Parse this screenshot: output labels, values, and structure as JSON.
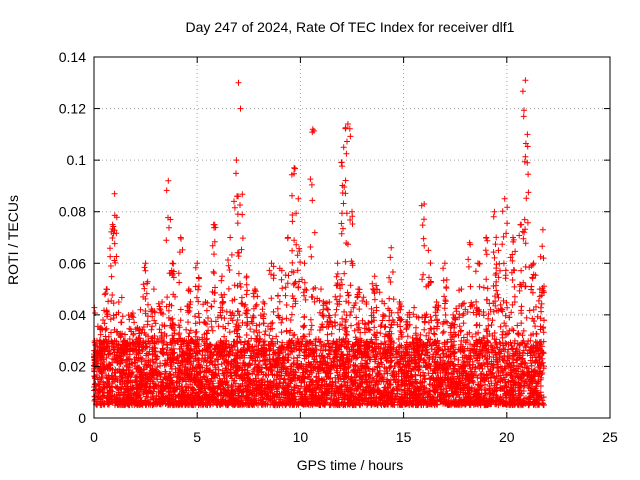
{
  "chart_data": {
    "type": "scatter",
    "title": "Day 247 of 2024, Rate Of TEC Index for receiver dlf1",
    "xlabel": "GPS time / hours",
    "ylabel": "ROTI / TECUs",
    "xlim": [
      0,
      25
    ],
    "ylim": [
      0,
      0.14
    ],
    "xticks": [
      "0",
      "5",
      "10",
      "15",
      "20",
      "25"
    ],
    "yticks": [
      "0",
      "0.02",
      "0.04",
      "0.06",
      "0.08",
      "0.1",
      "0.12",
      "0.14"
    ],
    "grid": true,
    "marker": "+",
    "color": "#ff0000",
    "x_range_of_data": [
      0,
      21.8
    ],
    "series": [
      {
        "name": "ROTI",
        "x": [
          0.05,
          0.3,
          0.6,
          0.9,
          1.0,
          1.2,
          1.5,
          1.8,
          2.1,
          2.5,
          2.9,
          3.3,
          3.6,
          3.8,
          4.2,
          4.6,
          5.0,
          5.4,
          5.8,
          6.2,
          6.6,
          6.9,
          7.0,
          7.1,
          7.4,
          7.8,
          8.2,
          8.6,
          9.0,
          9.4,
          9.7,
          9.9,
          10.2,
          10.6,
          11.0,
          11.4,
          11.8,
          12.1,
          12.3,
          12.5,
          12.8,
          13.2,
          13.6,
          14.0,
          14.4,
          14.8,
          15.2,
          15.6,
          16.0,
          16.2,
          16.6,
          17.0,
          17.4,
          17.8,
          18.2,
          18.6,
          19.0,
          19.4,
          19.6,
          19.9,
          20.3,
          20.7,
          20.9,
          21.0,
          21.3,
          21.6,
          21.75
        ],
        "y": [
          0.02,
          0.035,
          0.05,
          0.075,
          0.087,
          0.045,
          0.03,
          0.04,
          0.035,
          0.06,
          0.05,
          0.045,
          0.092,
          0.06,
          0.07,
          0.05,
          0.06,
          0.045,
          0.075,
          0.055,
          0.07,
          0.1,
          0.13,
          0.12,
          0.055,
          0.05,
          0.045,
          0.06,
          0.058,
          0.07,
          0.097,
          0.085,
          0.06,
          0.112,
          0.05,
          0.045,
          0.06,
          0.105,
          0.114,
          0.08,
          0.05,
          0.045,
          0.055,
          0.04,
          0.066,
          0.045,
          0.04,
          0.035,
          0.083,
          0.065,
          0.045,
          0.06,
          0.04,
          0.05,
          0.068,
          0.06,
          0.07,
          0.08,
          0.065,
          0.085,
          0.07,
          0.075,
          0.131,
          0.11,
          0.06,
          0.05,
          0.073
        ],
        "baseline_band": [
          0.005,
          0.03
        ]
      }
    ]
  }
}
